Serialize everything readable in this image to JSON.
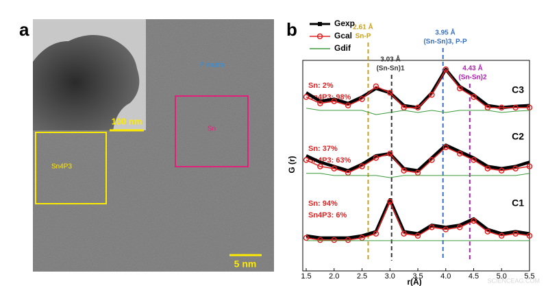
{
  "panel_a": {
    "label": "a",
    "matrix_label": "P matrix",
    "region_labels": [
      "Sn4P3",
      "Sn"
    ],
    "scale_bars": [
      "100 nm",
      "5 nm"
    ]
  },
  "chart_data": {
    "type": "line",
    "label": "b",
    "xlabel": "r(Å)",
    "ylabel": "G (r)",
    "xlim": [
      1.5,
      5.5
    ],
    "xticks": [
      1.5,
      {
        "value": 2,
        "label": "2.0"
      },
      2.5,
      {
        "value": 3,
        "label": "3.0"
      },
      3.5,
      {
        "value": 4,
        "label": "4.0"
      },
      4.5,
      {
        "value": 5,
        "label": "5.0"
      },
      5.5
    ],
    "x": [
      1.5,
      1.75,
      2.0,
      2.25,
      2.5,
      2.75,
      3.0,
      3.25,
      3.5,
      3.75,
      4.0,
      4.25,
      4.5,
      4.75,
      5.0,
      5.25,
      5.5
    ],
    "panels": [
      {
        "name": "C3",
        "composition": [
          "Sn: 2%",
          "Sn4P3: 98%"
        ]
      },
      {
        "name": "C2",
        "composition": [
          "Sn: 37%",
          "Sn4P3: 63%"
        ]
      },
      {
        "name": "C1",
        "composition": [
          "Sn: 94%",
          "Sn4P3: 6%"
        ]
      }
    ],
    "series": [
      {
        "name": "Gexp",
        "color": "#000000",
        "values": [
          [
            0.4,
            0.2,
            0.25,
            0.15,
            0.3,
            0.5,
            0.4,
            0.1,
            0.05,
            0.4,
            0.95,
            0.55,
            0.35,
            0.1,
            0.05,
            0.08,
            0.1
          ],
          [
            0.45,
            0.3,
            0.2,
            0.1,
            0.25,
            0.45,
            0.5,
            0.15,
            0.1,
            0.4,
            0.7,
            0.55,
            0.4,
            0.2,
            0.15,
            0.2,
            0.3
          ],
          [
            0.1,
            0.05,
            0.05,
            0.05,
            0.1,
            0.2,
            0.95,
            0.2,
            0.15,
            0.35,
            0.3,
            0.35,
            0.5,
            0.25,
            0.15,
            0.2,
            0.15
          ]
        ]
      },
      {
        "name": "Gcal",
        "color": "#e02020",
        "values": [
          [
            0.3,
            0.15,
            0.2,
            0.1,
            0.25,
            0.55,
            0.4,
            0.05,
            0.05,
            0.35,
            0.95,
            0.5,
            0.3,
            0.05,
            0.05,
            0.05,
            0.05
          ],
          [
            0.35,
            0.2,
            0.15,
            0.05,
            0.2,
            0.4,
            0.5,
            0.1,
            0.05,
            0.35,
            0.65,
            0.5,
            0.35,
            0.15,
            0.1,
            0.15,
            0.2
          ],
          [
            0.05,
            0.0,
            0.0,
            0.0,
            0.05,
            0.15,
            0.9,
            0.15,
            0.1,
            0.3,
            0.25,
            0.3,
            0.45,
            0.2,
            0.1,
            0.15,
            0.1
          ]
        ]
      },
      {
        "name": "Gdif",
        "color": "#3a9a3a",
        "values": [
          [
            0.1,
            0.05,
            0.05,
            0.05,
            0.05,
            -0.05,
            0.0,
            0.05,
            0.0,
            0.05,
            0.0,
            0.05,
            0.05,
            0.05,
            0.0,
            0.03,
            0.05
          ],
          [
            0.1,
            0.1,
            0.05,
            0.05,
            0.05,
            0.05,
            0.0,
            0.05,
            0.05,
            0.05,
            0.05,
            0.05,
            0.05,
            0.05,
            0.05,
            0.05,
            0.1
          ],
          [
            0.05,
            0.05,
            0.05,
            0.05,
            0.05,
            0.05,
            0.05,
            0.05,
            0.05,
            0.05,
            0.05,
            0.05,
            0.05,
            0.05,
            0.05,
            0.05,
            0.05
          ]
        ]
      }
    ],
    "annotations": [
      {
        "x": 2.61,
        "label": "2.61 Å",
        "bond": "Sn-P",
        "color": "#c9a020"
      },
      {
        "x": 3.03,
        "label": "3.03 Å",
        "bond": "(Sn-Sn)1",
        "color": "#333333"
      },
      {
        "x": 3.95,
        "label": "3.95 Å",
        "bond": "(Sn-Sn)3, P-P",
        "color": "#3a6fc0"
      },
      {
        "x": 4.43,
        "label": "4.43 Å",
        "bond": "(Sn-Sn)2",
        "color": "#b020b0"
      }
    ]
  },
  "watermark": "SCIENCEAG.COM"
}
